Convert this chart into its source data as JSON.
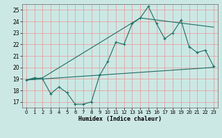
{
  "xlabel": "Humidex (Indice chaleur)",
  "background_color": "#cce8e4",
  "grid_color": "#e8a0a0",
  "line_color": "#1a6e64",
  "xlim": [
    -0.5,
    23.5
  ],
  "ylim": [
    16.5,
    25.5
  ],
  "yticks": [
    17,
    18,
    19,
    20,
    21,
    22,
    23,
    24,
    25
  ],
  "xticks": [
    0,
    1,
    2,
    3,
    4,
    5,
    6,
    7,
    8,
    9,
    10,
    11,
    12,
    13,
    14,
    15,
    16,
    17,
    18,
    19,
    20,
    21,
    22,
    23
  ],
  "line1_x": [
    0,
    1,
    2,
    3,
    4,
    5,
    6,
    7,
    8,
    9,
    10,
    11,
    12,
    13,
    14,
    15,
    16,
    17,
    18,
    19,
    20,
    21,
    22,
    23
  ],
  "line1_y": [
    18.9,
    19.1,
    19.0,
    17.7,
    18.3,
    17.8,
    16.8,
    16.8,
    17.0,
    19.3,
    20.5,
    22.2,
    22.0,
    23.8,
    24.3,
    25.3,
    23.8,
    22.5,
    23.0,
    24.1,
    21.8,
    21.3,
    21.5,
    20.1
  ],
  "line2_x": [
    0,
    2,
    14,
    23
  ],
  "line2_y": [
    18.9,
    19.1,
    24.3,
    23.5
  ],
  "line3_x": [
    0,
    23
  ],
  "line3_y": [
    18.9,
    20.0
  ]
}
